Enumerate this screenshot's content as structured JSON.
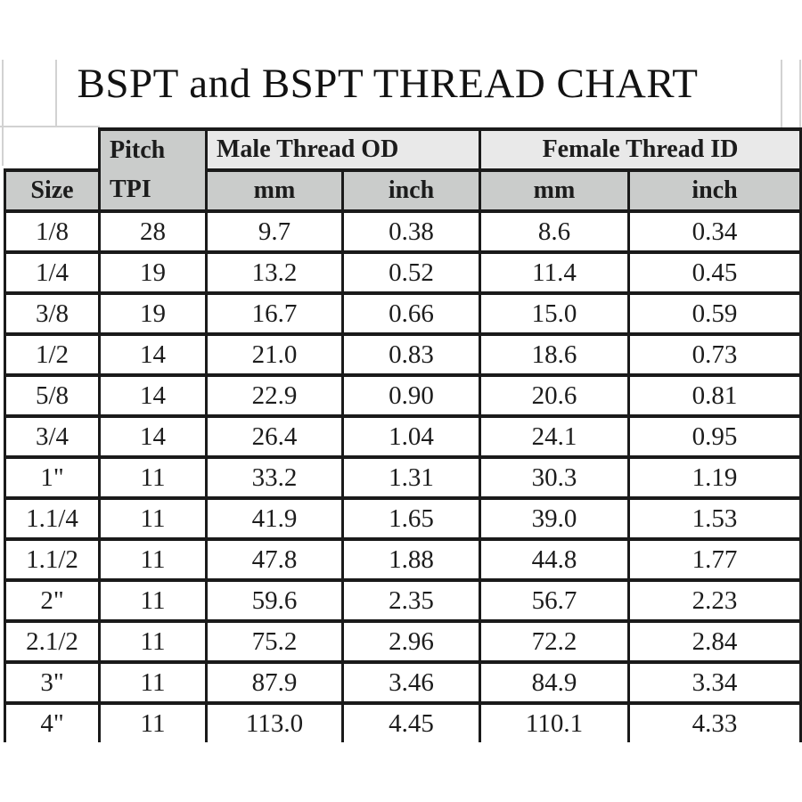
{
  "title": "BSPT and BSPT THREAD CHART",
  "colors": {
    "border": "#1a1a1a",
    "header_cell_gray": "#cacccb",
    "group_header_gray": "#e9e9e9",
    "text": "#1c1c1c"
  },
  "table": {
    "size_header": "Size",
    "pitch_label": "Pitch",
    "tpi_label": "TPI",
    "groups": [
      {
        "label": "Male Thread OD"
      },
      {
        "label": "Female Thread ID"
      }
    ],
    "unit_headers": [
      "mm",
      "inch",
      "mm",
      "inch"
    ],
    "rows": [
      {
        "size": "1/8",
        "tpi": "28",
        "male_mm": "9.7",
        "male_inch": "0.38",
        "female_mm": "8.6",
        "female_inch": "0.34"
      },
      {
        "size": "1/4",
        "tpi": "19",
        "male_mm": "13.2",
        "male_inch": "0.52",
        "female_mm": "11.4",
        "female_inch": "0.45"
      },
      {
        "size": "3/8",
        "tpi": "19",
        "male_mm": "16.7",
        "male_inch": "0.66",
        "female_mm": "15.0",
        "female_inch": "0.59"
      },
      {
        "size": "1/2",
        "tpi": "14",
        "male_mm": "21.0",
        "male_inch": "0.83",
        "female_mm": "18.6",
        "female_inch": "0.73"
      },
      {
        "size": "5/8",
        "tpi": "14",
        "male_mm": "22.9",
        "male_inch": "0.90",
        "female_mm": "20.6",
        "female_inch": "0.81"
      },
      {
        "size": "3/4",
        "tpi": "14",
        "male_mm": "26.4",
        "male_inch": "1.04",
        "female_mm": "24.1",
        "female_inch": "0.95"
      },
      {
        "size": "1\"",
        "tpi": "11",
        "male_mm": "33.2",
        "male_inch": "1.31",
        "female_mm": "30.3",
        "female_inch": "1.19"
      },
      {
        "size": "1.1/4",
        "tpi": "11",
        "male_mm": "41.9",
        "male_inch": "1.65",
        "female_mm": "39.0",
        "female_inch": "1.53"
      },
      {
        "size": "1.1/2",
        "tpi": "11",
        "male_mm": "47.8",
        "male_inch": "1.88",
        "female_mm": "44.8",
        "female_inch": "1.77"
      },
      {
        "size": "2\"",
        "tpi": "11",
        "male_mm": "59.6",
        "male_inch": "2.35",
        "female_mm": "56.7",
        "female_inch": "2.23"
      },
      {
        "size": "2.1/2",
        "tpi": "11",
        "male_mm": "75.2",
        "male_inch": "2.96",
        "female_mm": "72.2",
        "female_inch": "2.84"
      },
      {
        "size": "3\"",
        "tpi": "11",
        "male_mm": "87.9",
        "male_inch": "3.46",
        "female_mm": "84.9",
        "female_inch": "3.34"
      },
      {
        "size": "4\"",
        "tpi": "11",
        "male_mm": "113.0",
        "male_inch": "4.45",
        "female_mm": "110.1",
        "female_inch": "4.33"
      }
    ]
  }
}
